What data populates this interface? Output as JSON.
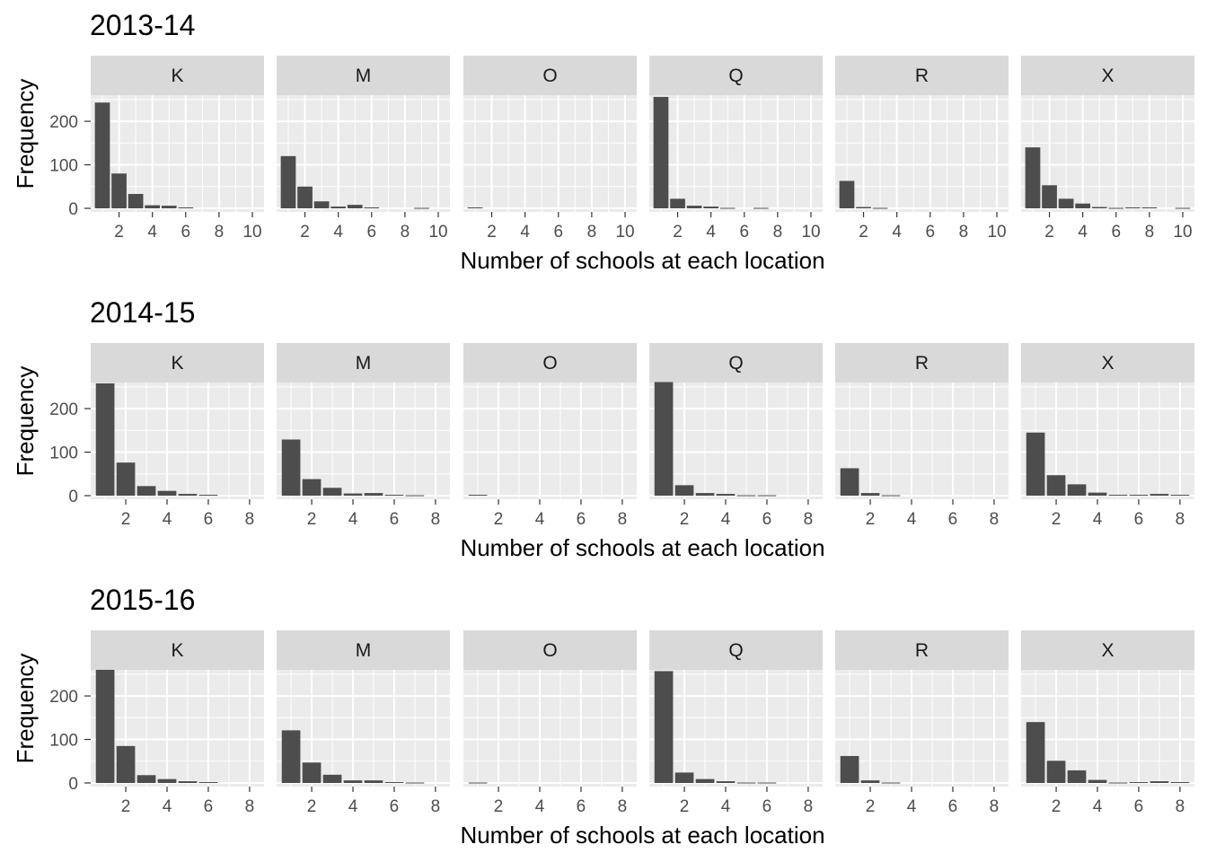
{
  "colors": {
    "panel_background": "#ebebeb",
    "strip_background": "#d9d9d9",
    "grid": "#ffffff",
    "bar_fill": "#4d4d4d",
    "tick_text": "#4d4d4d"
  },
  "chart_data": [
    {
      "type": "bar",
      "title": "2013-14",
      "xlabel": "Number of schools at each location",
      "ylabel": "Frequency",
      "xlim": [
        0.3,
        10.7
      ],
      "ylim": [
        0,
        260
      ],
      "x_ticks": [
        2,
        4,
        6,
        8,
        10
      ],
      "y_ticks": [
        0,
        100,
        200
      ],
      "grid": true,
      "facets": [
        {
          "label": "K",
          "x": [
            1,
            2,
            3,
            4,
            5,
            6
          ],
          "values": [
            243,
            80,
            33,
            7,
            6,
            2
          ]
        },
        {
          "label": "M",
          "x": [
            1,
            2,
            3,
            4,
            5,
            6,
            9
          ],
          "values": [
            120,
            50,
            16,
            4,
            8,
            2,
            1
          ]
        },
        {
          "label": "O",
          "x": [
            1
          ],
          "values": [
            2
          ]
        },
        {
          "label": "Q",
          "x": [
            1,
            2,
            3,
            4,
            5,
            7
          ],
          "values": [
            256,
            22,
            6,
            4,
            1,
            1
          ]
        },
        {
          "label": "R",
          "x": [
            1,
            2,
            3
          ],
          "values": [
            63,
            3,
            1
          ]
        },
        {
          "label": "X",
          "x": [
            1,
            2,
            3,
            4,
            5,
            6,
            7,
            8,
            10
          ],
          "values": [
            140,
            53,
            22,
            11,
            3,
            1,
            2,
            2,
            1
          ]
        }
      ]
    },
    {
      "type": "bar",
      "title": "2014-15",
      "xlabel": "Number of schools at each location",
      "ylabel": "Frequency",
      "xlim": [
        0.3,
        8.7
      ],
      "ylim": [
        0,
        260
      ],
      "x_ticks": [
        2,
        4,
        6,
        8
      ],
      "y_ticks": [
        0,
        100,
        200
      ],
      "grid": true,
      "facets": [
        {
          "label": "K",
          "x": [
            1,
            2,
            3,
            4,
            5,
            6
          ],
          "values": [
            258,
            76,
            22,
            11,
            4,
            2
          ]
        },
        {
          "label": "M",
          "x": [
            1,
            2,
            3,
            4,
            5,
            6,
            7
          ],
          "values": [
            129,
            38,
            18,
            5,
            6,
            2,
            1
          ]
        },
        {
          "label": "O",
          "x": [
            1
          ],
          "values": [
            2
          ]
        },
        {
          "label": "Q",
          "x": [
            1,
            2,
            3,
            4,
            5,
            6
          ],
          "values": [
            261,
            24,
            6,
            4,
            1,
            1
          ]
        },
        {
          "label": "R",
          "x": [
            1,
            2,
            3
          ],
          "values": [
            63,
            6,
            1
          ]
        },
        {
          "label": "X",
          "x": [
            1,
            2,
            3,
            4,
            5,
            6,
            7,
            8
          ],
          "values": [
            145,
            47,
            26,
            7,
            2,
            2,
            4,
            2
          ]
        }
      ]
    },
    {
      "type": "bar",
      "title": "2015-16",
      "xlabel": "Number of schools at each location",
      "ylabel": "Frequency",
      "xlim": [
        0.3,
        8.7
      ],
      "ylim": [
        0,
        260
      ],
      "x_ticks": [
        2,
        4,
        6,
        8
      ],
      "y_ticks": [
        0,
        100,
        200
      ],
      "grid": true,
      "facets": [
        {
          "label": "K",
          "x": [
            1,
            2,
            3,
            4,
            5,
            6
          ],
          "values": [
            260,
            85,
            18,
            9,
            4,
            2
          ]
        },
        {
          "label": "M",
          "x": [
            1,
            2,
            3,
            4,
            5,
            6,
            7
          ],
          "values": [
            121,
            47,
            19,
            6,
            6,
            2,
            1
          ]
        },
        {
          "label": "O",
          "x": [
            1
          ],
          "values": [
            1
          ]
        },
        {
          "label": "Q",
          "x": [
            1,
            2,
            3,
            4,
            5,
            6
          ],
          "values": [
            257,
            24,
            9,
            4,
            1,
            1
          ]
        },
        {
          "label": "R",
          "x": [
            1,
            2,
            3
          ],
          "values": [
            62,
            6,
            1
          ]
        },
        {
          "label": "X",
          "x": [
            1,
            2,
            3,
            4,
            5,
            6,
            7,
            8
          ],
          "values": [
            140,
            51,
            29,
            7,
            1,
            2,
            4,
            2
          ]
        }
      ]
    }
  ]
}
